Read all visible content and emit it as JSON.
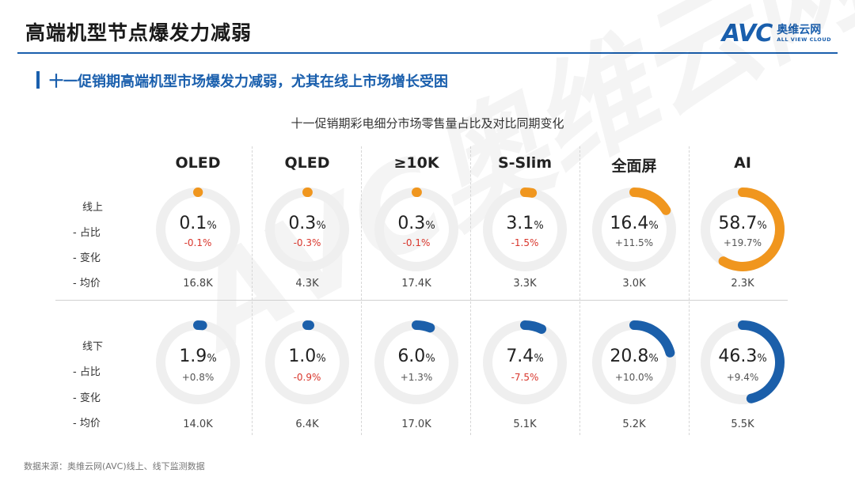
{
  "header": {
    "title": "高端机型节点爆发力减弱",
    "logo_text": "AVC",
    "logo_cn": "奥维云网",
    "logo_en": "ALL VIEW CLOUD"
  },
  "subtitle": "十一促销期高端机型市场爆发力减弱，尤其在线上市场增长受困",
  "footnote": "数据来源：奥维云网(AVC)线上、线下监测数据",
  "row_labels": {
    "online": [
      "线上",
      "- 占比",
      "- 变化",
      "- 均价"
    ],
    "offline": [
      "线下",
      "- 占比",
      "- 变化",
      "- 均价"
    ]
  },
  "colors": {
    "online": "#f0961e",
    "offline": "#1b5faa",
    "track": "#efefef",
    "negative": "#d9362c",
    "positive": "#555555"
  },
  "chart_data": {
    "type": "donut",
    "title": "十一促销期彩电细分市场零售量占比及对比同期变化",
    "categories": [
      "OLED",
      "QLED",
      "≥10K",
      "S-Slim",
      "全面屏",
      "AI"
    ],
    "unit": "%",
    "series": [
      {
        "name": "线上",
        "share": [
          0.1,
          0.3,
          0.3,
          3.1,
          16.4,
          58.7
        ],
        "share_labels": [
          "0.1",
          "0.3",
          "0.3",
          "3.1",
          "16.4",
          "58.7"
        ],
        "change": [
          "-0.1%",
          "-0.3%",
          "-0.1%",
          "-1.5%",
          "+11.5%",
          "+19.7%"
        ],
        "avg_price": [
          "16.8K",
          "4.3K",
          "17.4K",
          "3.3K",
          "3.0K",
          "2.3K"
        ]
      },
      {
        "name": "线下",
        "share": [
          1.9,
          1.0,
          6.0,
          7.4,
          20.8,
          46.3
        ],
        "share_labels": [
          "1.9",
          "1.0",
          "6.0",
          "7.4",
          "20.8",
          "46.3"
        ],
        "change": [
          "+0.8%",
          "-0.9%",
          "+1.3%",
          "-7.5%",
          "+10.0%",
          "+9.4%"
        ],
        "avg_price": [
          "14.0K",
          "6.4K",
          "17.0K",
          "5.1K",
          "5.2K",
          "5.5K"
        ]
      }
    ]
  }
}
